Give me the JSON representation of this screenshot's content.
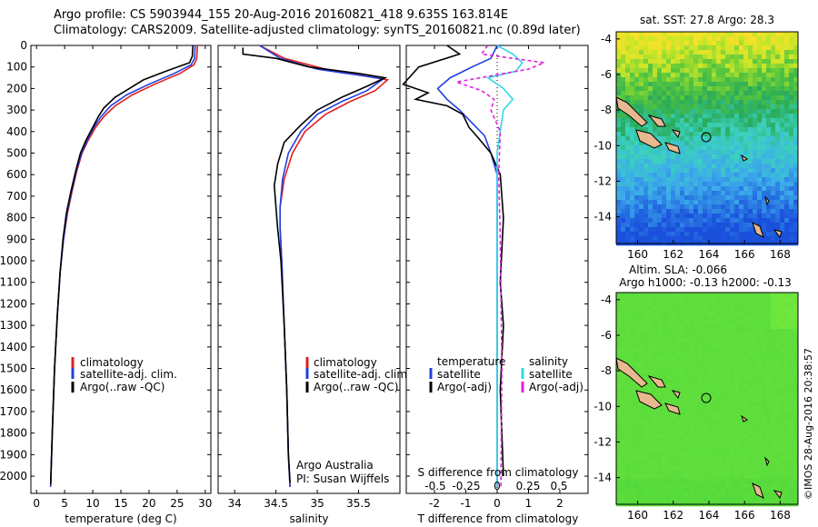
{
  "header": {
    "line1": "Argo profile: CS 5903944_155 20-Aug-2016 20160821_418 9.635S 163.814E",
    "line2": "Climatology: CARS2009. Satellite-adjusted climatology: synTS_20160821.nc (0.89d later)"
  },
  "colors": {
    "climatology": "#e02020",
    "satellite": "#1f3fe0",
    "argo": "#000000",
    "sat_salinity": "#30d8e8",
    "argo_salinity": "#e020e0"
  },
  "chart_data": [
    {
      "type": "line",
      "id": "temperature",
      "xlabel": "temperature (deg C)",
      "xlim": [
        -1,
        31
      ],
      "xticks": [
        0,
        5,
        10,
        15,
        20,
        25,
        30
      ],
      "ylim": [
        0,
        2080
      ],
      "yticks": [
        0,
        100,
        200,
        300,
        400,
        500,
        600,
        700,
        800,
        900,
        1000,
        1100,
        1200,
        1300,
        1400,
        1500,
        1600,
        1700,
        1800,
        1900,
        2000
      ],
      "legend": [
        "climatology",
        "satellite-adj. clim.",
        "Argo(..raw -QC)"
      ],
      "series": [
        {
          "name": "climatology",
          "color": "#e02020",
          "points": [
            [
              28.6,
              0
            ],
            [
              28.5,
              60
            ],
            [
              28.0,
              90
            ],
            [
              25.5,
              130
            ],
            [
              21,
              180
            ],
            [
              17,
              230
            ],
            [
              14,
              280
            ],
            [
              12,
              330
            ],
            [
              10.5,
              380
            ],
            [
              9.2,
              440
            ],
            [
              8.1,
              500
            ],
            [
              7.2,
              580
            ],
            [
              6.3,
              680
            ],
            [
              5.5,
              780
            ],
            [
              4.8,
              900
            ],
            [
              4.2,
              1050
            ],
            [
              3.7,
              1250
            ],
            [
              3.2,
              1500
            ],
            [
              2.8,
              1800
            ],
            [
              2.5,
              2050
            ]
          ]
        },
        {
          "name": "satellite-adj. clim.",
          "color": "#1f3fe0",
          "points": [
            [
              28.2,
              0
            ],
            [
              28.1,
              60
            ],
            [
              27.5,
              90
            ],
            [
              24.5,
              130
            ],
            [
              20,
              180
            ],
            [
              16,
              230
            ],
            [
              13.2,
              280
            ],
            [
              11.5,
              330
            ],
            [
              10.2,
              380
            ],
            [
              9.0,
              440
            ],
            [
              8.0,
              500
            ],
            [
              7.1,
              580
            ],
            [
              6.2,
              680
            ],
            [
              5.4,
              780
            ],
            [
              4.8,
              900
            ],
            [
              4.2,
              1050
            ],
            [
              3.7,
              1250
            ],
            [
              3.2,
              1500
            ],
            [
              2.8,
              1800
            ],
            [
              2.5,
              2050
            ]
          ]
        },
        {
          "name": "Argo(..raw -QC)",
          "color": "#000000",
          "points": [
            [
              27.8,
              0
            ],
            [
              27.7,
              50
            ],
            [
              27.2,
              80
            ],
            [
              23,
              120
            ],
            [
              19,
              160
            ],
            [
              16.5,
              200
            ],
            [
              14,
              240
            ],
            [
              12,
              290
            ],
            [
              11,
              330
            ],
            [
              10,
              380
            ],
            [
              8.8,
              440
            ],
            [
              7.8,
              500
            ],
            [
              7.0,
              580
            ],
            [
              6.1,
              680
            ],
            [
              5.3,
              780
            ],
            [
              4.7,
              900
            ],
            [
              4.2,
              1050
            ],
            [
              3.7,
              1250
            ],
            [
              3.2,
              1500
            ],
            [
              2.8,
              1800
            ],
            [
              2.5,
              2040
            ]
          ]
        }
      ]
    },
    {
      "type": "line",
      "id": "salinity",
      "xlabel": "salinity",
      "xlim": [
        33.8,
        36.0
      ],
      "xticks": [
        34,
        34.5,
        35,
        35.5
      ],
      "ylim": [
        0,
        2080
      ],
      "legend": [
        "climatology",
        "satellite-adj. clim.",
        "Argo(..raw -QC)"
      ],
      "annotation": [
        "Argo Australia",
        "PI: Susan Wijffels"
      ],
      "series": [
        {
          "name": "climatology",
          "color": "#e02020",
          "points": [
            [
              34.3,
              0
            ],
            [
              34.6,
              60
            ],
            [
              35.1,
              110
            ],
            [
              35.85,
              160
            ],
            [
              35.7,
              210
            ],
            [
              35.4,
              260
            ],
            [
              35.1,
              320
            ],
            [
              34.85,
              400
            ],
            [
              34.7,
              500
            ],
            [
              34.6,
              620
            ],
            [
              34.55,
              750
            ],
            [
              34.55,
              850
            ],
            [
              34.57,
              1000
            ],
            [
              34.6,
              1300
            ],
            [
              34.63,
              1600
            ],
            [
              34.65,
              1900
            ],
            [
              34.67,
              2050
            ]
          ]
        },
        {
          "name": "satellite-adj. clim.",
          "color": "#1f3fe0",
          "points": [
            [
              34.3,
              0
            ],
            [
              34.55,
              60
            ],
            [
              35.0,
              110
            ],
            [
              35.8,
              155
            ],
            [
              35.6,
              210
            ],
            [
              35.3,
              260
            ],
            [
              35.0,
              320
            ],
            [
              34.8,
              400
            ],
            [
              34.65,
              500
            ],
            [
              34.58,
              620
            ],
            [
              34.55,
              750
            ],
            [
              34.55,
              850
            ],
            [
              34.57,
              1000
            ],
            [
              34.6,
              1300
            ],
            [
              34.63,
              1600
            ],
            [
              34.65,
              1900
            ],
            [
              34.67,
              2050
            ]
          ]
        },
        {
          "name": "Argo(..raw -QC)",
          "color": "#000000",
          "points": [
            [
              34.1,
              10
            ],
            [
              34.1,
              40
            ],
            [
              34.5,
              60
            ],
            [
              34.9,
              100
            ],
            [
              35.5,
              130
            ],
            [
              35.82,
              150
            ],
            [
              35.6,
              190
            ],
            [
              35.3,
              240
            ],
            [
              35.0,
              300
            ],
            [
              34.8,
              370
            ],
            [
              34.6,
              450
            ],
            [
              34.52,
              550
            ],
            [
              34.48,
              650
            ],
            [
              34.5,
              750
            ],
            [
              34.52,
              850
            ],
            [
              34.56,
              1000
            ],
            [
              34.6,
              1300
            ],
            [
              34.63,
              1600
            ],
            [
              34.65,
              1900
            ],
            [
              34.67,
              2030
            ]
          ]
        }
      ]
    },
    {
      "type": "line",
      "id": "difference",
      "xlabel_top": "S difference from climatology",
      "xticks_top": [
        "-0.5",
        "-0.25",
        "0",
        "0.25",
        "0.5"
      ],
      "xlabel": "T difference from climatology",
      "xlim": [
        -2.9,
        2.9
      ],
      "xticks": [
        -2,
        -1,
        0,
        1,
        2
      ],
      "ylim": [
        0,
        2080
      ],
      "legend_temperature": {
        "title": "temperature",
        "items": [
          "satellite",
          "Argo(-adj)"
        ]
      },
      "legend_salinity": {
        "title": "salinity",
        "items": [
          "satellite",
          "Argo(-adj)"
        ]
      },
      "series": [
        {
          "name": "satellite",
          "color": "#1f3fe0",
          "points": [
            [
              0,
              0
            ],
            [
              -0.2,
              60
            ],
            [
              -0.8,
              100
            ],
            [
              -1.5,
              150
            ],
            [
              -1.9,
              200
            ],
            [
              -1.6,
              250
            ],
            [
              -1.2,
              300
            ],
            [
              -0.8,
              360
            ],
            [
              -0.4,
              420
            ],
            [
              -0.2,
              500
            ],
            [
              0,
              600
            ],
            [
              0,
              2050
            ]
          ]
        },
        {
          "name": "Argo(-adj)",
          "color": "#000000",
          "points": [
            [
              -1.6,
              0
            ],
            [
              -1.2,
              40
            ],
            [
              -2.5,
              100
            ],
            [
              -3.0,
              180
            ],
            [
              -2.2,
              220
            ],
            [
              -2.6,
              250
            ],
            [
              -1.6,
              280
            ],
            [
              -1.1,
              320
            ],
            [
              -0.9,
              380
            ],
            [
              -0.6,
              430
            ],
            [
              -0.2,
              500
            ],
            [
              0.1,
              600
            ],
            [
              0.2,
              800
            ],
            [
              0.1,
              1100
            ],
            [
              0.2,
              1300
            ],
            [
              0.1,
              1600
            ],
            [
              0.2,
              2000
            ]
          ]
        },
        {
          "name": "satellite salinity",
          "color": "#30d8e8",
          "points": [
            [
              0,
              0
            ],
            [
              0.5,
              40
            ],
            [
              0.8,
              80
            ],
            [
              0.6,
              120
            ],
            [
              -0.3,
              150
            ],
            [
              0.2,
              200
            ],
            [
              0.5,
              250
            ],
            [
              0.2,
              300
            ],
            [
              0.1,
              400
            ],
            [
              0,
              500
            ],
            [
              0,
              2050
            ]
          ]
        },
        {
          "name": "Argo salinity",
          "color": "#e020e0",
          "points": [
            [
              -0.3,
              0
            ],
            [
              -0.5,
              40
            ],
            [
              1.5,
              80
            ],
            [
              1.0,
              110
            ],
            [
              -1.3,
              170
            ],
            [
              -0.5,
              210
            ],
            [
              -0.1,
              250
            ],
            [
              -0.2,
              300
            ],
            [
              0.1,
              400
            ],
            [
              0.05,
              600
            ],
            [
              0.1,
              900
            ],
            [
              0.15,
              1500
            ],
            [
              0.12,
              2050
            ]
          ]
        }
      ]
    },
    {
      "type": "heatmap",
      "id": "sst-map",
      "title": "sat. SST: 27.8 Argo: 28.3",
      "xticks": [
        160,
        162,
        164,
        166,
        168
      ],
      "yticks": [
        -4,
        -6,
        -8,
        -10,
        -12,
        -14
      ]
    },
    {
      "type": "heatmap",
      "id": "sla-map",
      "title_line1": "Altim. SLA: -0.066",
      "title_line2": "Argo h1000: -0.13 h2000: -0.13",
      "xticks": [
        160,
        162,
        164,
        166,
        168
      ],
      "yticks": [
        -4,
        -6,
        -8,
        -10,
        -12,
        -14
      ]
    }
  ],
  "footer_stamp": "©IMOS 28-Aug-2016 20:38:57"
}
